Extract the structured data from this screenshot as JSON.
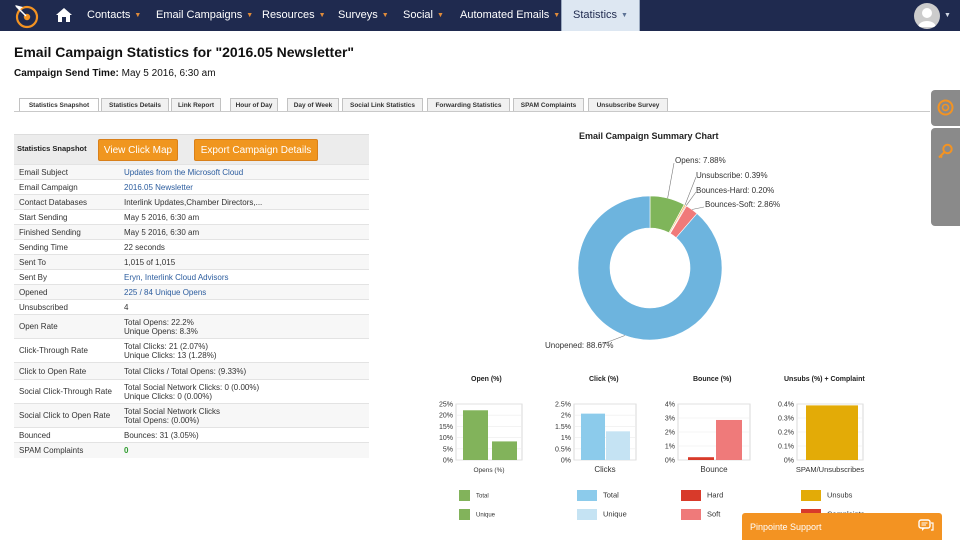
{
  "nav": {
    "items": [
      {
        "label": "Contacts"
      },
      {
        "label": "Email Campaigns"
      },
      {
        "label": "Resources"
      },
      {
        "label": "Surveys"
      },
      {
        "label": "Social"
      },
      {
        "label": "Automated Emails"
      },
      {
        "label": "Statistics"
      }
    ]
  },
  "page": {
    "title": "Email Campaign Statistics for \"2016.05 Newsletter\"",
    "send_time_label": "Campaign Send Time:",
    "send_time_value": "May 5 2016, 6:30 am"
  },
  "tabs": [
    "Statistics Snapshot",
    "Statistics Details",
    "Link Report",
    "Hour of Day",
    "Day of Week",
    "Social Link Statistics",
    "Forwarding Statistics",
    "SPAM Complaints",
    "Unsubscribe Survey"
  ],
  "snapshot": {
    "heading": "Statistics Snapshot",
    "view_click_map": "View Click Map",
    "export": "Export Campaign Details",
    "rows": [
      {
        "k": "Email Subject",
        "v1": "Updates from the Microsoft Cloud",
        "v2": ""
      },
      {
        "k": "Email Campaign",
        "v1": "2016.05 Newsletter",
        "v2": ""
      },
      {
        "k": "Contact Databases",
        "v1": "Interlink Updates,Chamber Directors,...",
        "v2": ""
      },
      {
        "k": "Start Sending",
        "v1": "May 5 2016, 6:30 am",
        "v2": ""
      },
      {
        "k": "Finished Sending",
        "v1": "May 5 2016, 6:30 am",
        "v2": ""
      },
      {
        "k": "Sending Time",
        "v1": "22 seconds",
        "v2": ""
      },
      {
        "k": "Sent To",
        "v1": "1,015 of 1,015",
        "v2": ""
      },
      {
        "k": "Sent By",
        "v1": "Eryn, Interlink Cloud Advisors",
        "v2": ""
      },
      {
        "k": "Opened",
        "v1": "225 / 84 Unique Opens",
        "v2": ""
      },
      {
        "k": "Unsubscribed",
        "v1": "4",
        "v2": ""
      },
      {
        "k": "Open Rate",
        "v1": "Total Opens: 22.2%",
        "v2": "Unique Opens: 8.3%"
      },
      {
        "k": "Click-Through Rate",
        "v1": "Total Clicks: 21 (2.07%)",
        "v2": "Unique Clicks: 13 (1.28%)"
      },
      {
        "k": "Click to Open Rate",
        "v1": "Total Clicks / Total Opens: (9.33%)",
        "v2": ""
      },
      {
        "k": "Social Click-Through Rate",
        "v1": "Total Social Network Clicks: 0 (0.00%)",
        "v2": "Unique Clicks: 0 (0.00%)"
      },
      {
        "k": "Social Click to Open Rate",
        "v1": "Total Social Network Clicks",
        "v2": "Total Opens: (0.00%)"
      },
      {
        "k": "Bounced",
        "v1": "Bounces: 31 (3.05%)",
        "v2": ""
      },
      {
        "k": "SPAM Complaints",
        "v1": "0",
        "v2": ""
      }
    ]
  },
  "support": {
    "label": "Pinpointe Support"
  },
  "colors": {
    "nav_bg": "#1f2a4f",
    "accent_orange": "#f0961f",
    "link_blue": "#2b5c9e",
    "opens": "#7fb55a",
    "unsubscribe": "#f0c36b",
    "bounces_hard": "#e33a3a",
    "bounces_soft": "#f07a7a",
    "unopened": "#6db4de"
  },
  "chart_data": [
    {
      "type": "pie",
      "title": "Email Campaign Summary Chart",
      "labels": [
        "Opens",
        "Unsubscribe",
        "Bounces-Hard",
        "Bounces-Soft",
        "Unopened"
      ],
      "display_labels": [
        "Opens: 7.88%",
        "Unsubscribe: 0.39%",
        "Bounces-Hard: 0.20%",
        "Bounces-Soft: 2.86%",
        "Unopened: 88.67%"
      ],
      "values": [
        7.88,
        0.39,
        0.2,
        2.86,
        88.67
      ],
      "colors": [
        "#7fb55a",
        "#f0c36b",
        "#e33a3a",
        "#f07a7a",
        "#6db4de"
      ]
    },
    {
      "type": "bar",
      "title": "Open (%)",
      "categories": [
        "Opens (%)"
      ],
      "series": [
        {
          "name": "Total",
          "values": [
            22.2
          ]
        },
        {
          "name": "Unique",
          "values": [
            8.3
          ]
        }
      ],
      "ylim": [
        0,
        25
      ],
      "ticks": [
        "25%",
        "20%",
        "15%",
        "10%",
        "5%",
        "0%"
      ],
      "colors": [
        "#82b35b",
        "#82b35b"
      ]
    },
    {
      "type": "bar",
      "title": "Click (%)",
      "categories": [
        "Clicks"
      ],
      "series": [
        {
          "name": "Total",
          "values": [
            2.07
          ]
        },
        {
          "name": "Unique",
          "values": [
            1.28
          ]
        }
      ],
      "ylim": [
        0,
        2.5
      ],
      "ticks": [
        "2.5%",
        "2%",
        "1.5%",
        "1%",
        "0.5%",
        "0%"
      ],
      "colors": [
        "#8ccbeb",
        "#c5e3f3"
      ]
    },
    {
      "type": "bar",
      "title": "Bounce (%)",
      "categories": [
        "Bounce"
      ],
      "series": [
        {
          "name": "Hard",
          "values": [
            0.2
          ]
        },
        {
          "name": "Soft",
          "values": [
            2.86
          ]
        }
      ],
      "ylim": [
        0,
        4
      ],
      "ticks": [
        "4%",
        "3%",
        "2%",
        "1%",
        "0%"
      ],
      "colors": [
        "#d83a2a",
        "#ef7a7a"
      ]
    },
    {
      "type": "bar",
      "title": "Unsubs (%) + Complaint",
      "categories": [
        "SPAM/Unsubscribes"
      ],
      "series": [
        {
          "name": "Unsubs",
          "values": [
            0.39
          ]
        },
        {
          "name": "Complaints",
          "values": [
            0
          ]
        }
      ],
      "ylim": [
        0,
        0.4
      ],
      "ticks": [
        "0.4%",
        "0.3%",
        "0.2%",
        "0.1%",
        "0%"
      ],
      "colors": [
        "#e3ab07",
        "#d83a2a"
      ]
    }
  ]
}
